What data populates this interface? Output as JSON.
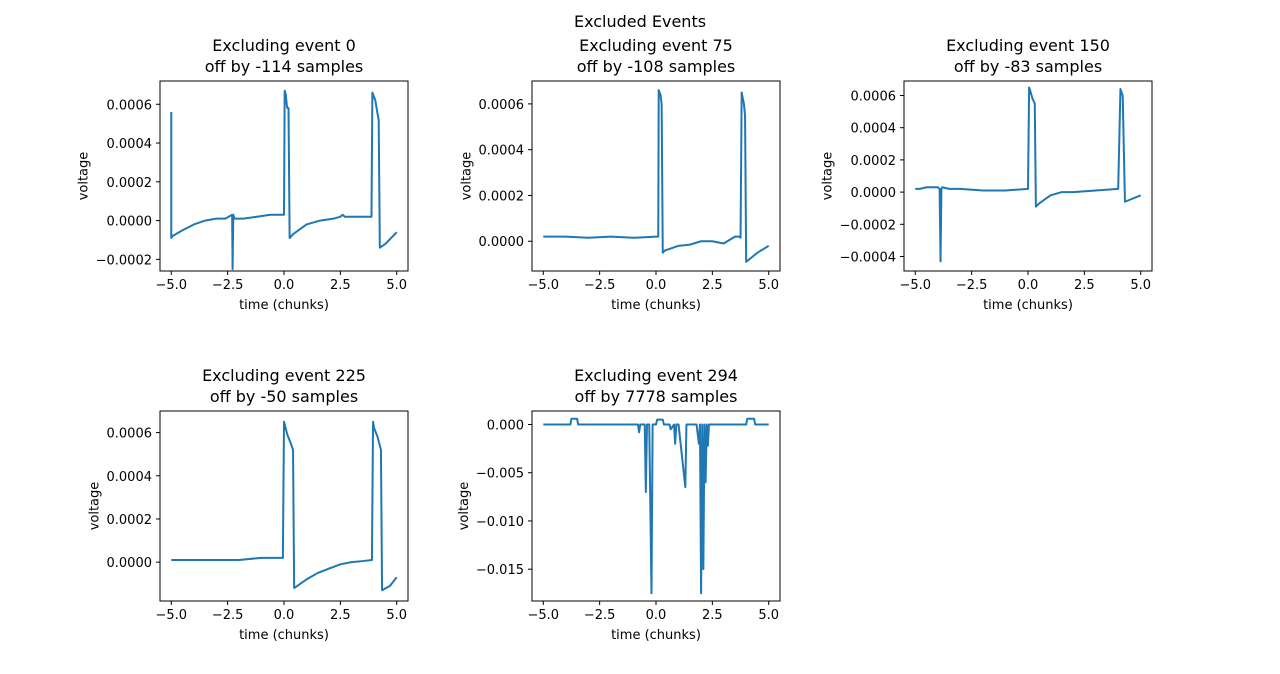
{
  "figure": {
    "suptitle": "Excluded Events",
    "line_color": "#1f77b4"
  },
  "chart_data": [
    {
      "type": "line",
      "title": "Excluding event 0\noff by -114 samples",
      "xlabel": "time (chunks)",
      "ylabel": "voltage",
      "xlim": [
        -5.5,
        5.5
      ],
      "ylim": [
        -0.00026,
        0.00072
      ],
      "xticks": [
        -5.0,
        -2.5,
        0.0,
        2.5,
        5.0
      ],
      "xtick_labels": [
        "−5.0",
        "−2.5",
        "0.0",
        "2.5",
        "5.0"
      ],
      "yticks": [
        -0.0002,
        0.0,
        0.0002,
        0.0004,
        0.0006
      ],
      "ytick_labels": [
        "−0.0002",
        "0.0000",
        "0.0002",
        "0.0004",
        "0.0006"
      ],
      "x": [
        -5.0,
        -5.0,
        -4.95,
        -4.5,
        -4.0,
        -3.5,
        -3.0,
        -2.6,
        -2.3,
        -2.28,
        -2.25,
        -2.22,
        -2.2,
        -1.8,
        -1.2,
        -0.6,
        0.0,
        0.03,
        0.08,
        0.12,
        0.15,
        0.2,
        0.25,
        0.4,
        1.0,
        1.6,
        2.2,
        2.5,
        2.6,
        2.7,
        3.2,
        3.8,
        3.88,
        3.92,
        4.05,
        4.15,
        4.2,
        4.25,
        4.5,
        5.0
      ],
      "y": [
        0.00056,
        -9e-05,
        -8e-05,
        -5e-05,
        -2e-05,
        0.0,
        1e-05,
        1e-05,
        3e-05,
        -0.00025,
        3e-05,
        2e-05,
        1e-05,
        1e-05,
        2e-05,
        3e-05,
        3e-05,
        0.00067,
        0.00065,
        0.0006,
        0.00058,
        0.00058,
        -9e-05,
        -7e-05,
        -2e-05,
        0.0,
        1e-05,
        2e-05,
        3e-05,
        2e-05,
        2e-05,
        2e-05,
        2e-05,
        0.00066,
        0.00062,
        0.00055,
        0.00052,
        -0.00014,
        -0.00012,
        -6e-05
      ]
    },
    {
      "type": "line",
      "title": "Excluding event 75\noff by -108 samples",
      "xlabel": "time (chunks)",
      "ylabel": "voltage",
      "xlim": [
        -5.5,
        5.5
      ],
      "ylim": [
        -0.00013,
        0.0007
      ],
      "xticks": [
        -5.0,
        -2.5,
        0.0,
        2.5,
        5.0
      ],
      "xtick_labels": [
        "−5.0",
        "−2.5",
        "0.0",
        "2.5",
        "5.0"
      ],
      "yticks": [
        0.0,
        0.0002,
        0.0004,
        0.0006
      ],
      "ytick_labels": [
        "0.0000",
        "0.0002",
        "0.0004",
        "0.0006"
      ],
      "x": [
        -5.0,
        -4.0,
        -3.0,
        -2.0,
        -1.0,
        0.0,
        0.1,
        0.12,
        0.2,
        0.25,
        0.3,
        0.4,
        1.0,
        1.5,
        2.0,
        2.5,
        3.0,
        3.5,
        3.7,
        3.75,
        3.8,
        3.9,
        3.95,
        4.0,
        4.5,
        5.0
      ],
      "y": [
        2e-05,
        2e-05,
        1.5e-05,
        2e-05,
        1.5e-05,
        2e-05,
        2e-05,
        0.00066,
        0.00064,
        0.0006,
        -5e-05,
        -4e-05,
        -2e-05,
        -1.5e-05,
        0.0,
        0.0,
        -1e-05,
        2e-05,
        2e-05,
        1.5e-05,
        0.00065,
        0.0006,
        0.00055,
        -9e-05,
        -5e-05,
        -2e-05
      ]
    },
    {
      "type": "line",
      "title": "Excluding event 150\noff by -83 samples",
      "xlabel": "time (chunks)",
      "ylabel": "voltage",
      "xlim": [
        -5.5,
        5.5
      ],
      "ylim": [
        -0.00049,
        0.00069
      ],
      "xticks": [
        -5.0,
        -2.5,
        0.0,
        2.5,
        5.0
      ],
      "xtick_labels": [
        "−5.0",
        "−2.5",
        "0.0",
        "2.5",
        "5.0"
      ],
      "yticks": [
        -0.0004,
        -0.0002,
        0.0,
        0.0002,
        0.0004,
        0.0006
      ],
      "ytick_labels": [
        "−0.0004",
        "−0.0002",
        "0.0000",
        "0.0002",
        "0.0004",
        "0.0006"
      ],
      "x": [
        -5.0,
        -4.8,
        -4.5,
        -4.2,
        -4.0,
        -3.92,
        -3.88,
        -3.84,
        -3.8,
        -3.5,
        -3.0,
        -2.0,
        -1.0,
        0.0,
        0.05,
        0.1,
        0.2,
        0.3,
        0.35,
        0.5,
        1.0,
        1.5,
        2.0,
        3.0,
        4.0,
        4.1,
        4.15,
        4.2,
        4.3,
        5.0
      ],
      "y": [
        2e-05,
        2e-05,
        3e-05,
        3e-05,
        3e-05,
        2e-05,
        -0.00043,
        2e-05,
        3e-05,
        2e-05,
        2e-05,
        1e-05,
        1e-05,
        2e-05,
        0.00065,
        0.00063,
        0.00058,
        0.00055,
        -9e-05,
        -7e-05,
        -2e-05,
        0.0,
        0.0,
        1e-05,
        2e-05,
        0.00064,
        0.00062,
        0.0006,
        -6e-05,
        -2e-05
      ]
    },
    {
      "type": "line",
      "title": "Excluding event 225\noff by -50 samples",
      "xlabel": "time (chunks)",
      "ylabel": "voltage",
      "xlim": [
        -5.5,
        5.5
      ],
      "ylim": [
        -0.00018,
        0.0007
      ],
      "xticks": [
        -5.0,
        -2.5,
        0.0,
        2.5,
        5.0
      ],
      "xtick_labels": [
        "−5.0",
        "−2.5",
        "0.0",
        "2.5",
        "5.0"
      ],
      "yticks": [
        0.0,
        0.0002,
        0.0004,
        0.0006
      ],
      "ytick_labels": [
        "0.0000",
        "0.0002",
        "0.0004",
        "0.0006"
      ],
      "x": [
        -5.0,
        -4.0,
        -3.0,
        -2.0,
        -1.0,
        -0.05,
        0.0,
        0.05,
        0.15,
        0.3,
        0.4,
        0.45,
        1.0,
        1.5,
        2.0,
        2.5,
        3.0,
        3.5,
        3.9,
        3.95,
        4.0,
        4.15,
        4.3,
        4.35,
        4.7,
        5.0
      ],
      "y": [
        1e-05,
        1e-05,
        1e-05,
        1e-05,
        2e-05,
        2e-05,
        0.00065,
        0.00063,
        0.00059,
        0.00055,
        0.00052,
        -0.00012,
        -8e-05,
        -5e-05,
        -3e-05,
        -1e-05,
        0.0,
        5e-06,
        1e-05,
        0.00065,
        0.00062,
        0.00058,
        0.00052,
        -0.00013,
        -0.00011,
        -7e-05
      ]
    },
    {
      "type": "line",
      "title": "Excluding event 294\noff by 7778 samples",
      "xlabel": "time (chunks)",
      "ylabel": "voltage",
      "xlim": [
        -5.5,
        5.5
      ],
      "ylim": [
        -0.0183,
        0.0014
      ],
      "xticks": [
        -5.0,
        -2.5,
        0.0,
        2.5,
        5.0
      ],
      "xtick_labels": [
        "−5.0",
        "−2.5",
        "0.0",
        "2.5",
        "5.0"
      ],
      "yticks": [
        -0.015,
        -0.01,
        -0.005,
        0.0
      ],
      "ytick_labels": [
        "−0.015",
        "−0.010",
        "−0.005",
        "0.000"
      ],
      "x": [
        -5.0,
        -3.8,
        -3.75,
        -3.5,
        -3.45,
        -2.5,
        -1.0,
        -0.8,
        -0.75,
        -0.7,
        -0.5,
        -0.45,
        -0.4,
        -0.35,
        -0.3,
        -0.2,
        -0.15,
        -0.1,
        0.0,
        0.05,
        0.3,
        0.35,
        0.6,
        0.65,
        0.8,
        0.85,
        0.9,
        1.0,
        1.3,
        1.35,
        1.4,
        1.8,
        1.9,
        1.95,
        2.0,
        2.05,
        2.1,
        2.15,
        2.2,
        2.25,
        2.3,
        2.35,
        2.5,
        3.5,
        4.0,
        4.05,
        4.35,
        4.4,
        5.0
      ],
      "y": [
        0.0,
        0.0,
        0.0006,
        0.0006,
        0.0,
        0.0,
        0.0,
        0.0,
        -0.0008,
        0.0,
        0.0,
        -0.007,
        0.0,
        0.0,
        0.0,
        -0.0175,
        0.0,
        0.0,
        0.0,
        0.0005,
        0.0005,
        0.0,
        0.0,
        -0.0005,
        0.0,
        -0.002,
        0.0,
        0.0,
        -0.0065,
        0.0,
        0.0,
        0.0,
        -0.002,
        0.0,
        -0.0175,
        0.0,
        -0.015,
        0.0,
        -0.006,
        0.0,
        -0.0022,
        0.0,
        0.0,
        0.0,
        0.0,
        0.0006,
        0.0006,
        0.0,
        0.0
      ]
    }
  ]
}
